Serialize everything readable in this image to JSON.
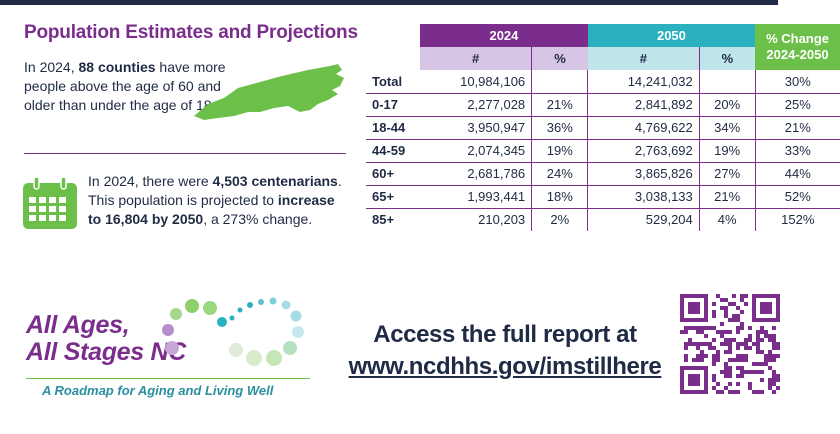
{
  "left": {
    "title": "Population Estimates and Projections",
    "intro_pre": "In 2024, ",
    "intro_bold": "88 counties",
    "intro_post": " have more people above the age of 60 and older than under the age of 18.",
    "centenarian_pre": "In 2024, there were ",
    "centenarian_bold1": "4,503 centenarians",
    "centenarian_mid": ". This population is projected to ",
    "centenarian_bold2": "increase to 16,804 by 2050",
    "centenarian_post": ", a 273% change."
  },
  "table": {
    "year1": "2024",
    "year2": "2050",
    "change_line1": "% Change",
    "change_line2": "2024-2050",
    "num_label": "#",
    "pct_label": "%",
    "rows": [
      {
        "label": "Total",
        "n2024": "10,984,106",
        "p2024": "",
        "n2050": "14,241,032",
        "p2050": "",
        "change": "30%"
      },
      {
        "label": "0-17",
        "n2024": "2,277,028",
        "p2024": "21%",
        "n2050": "2,841,892",
        "p2050": "20%",
        "change": "25%"
      },
      {
        "label": "18-44",
        "n2024": "3,950,947",
        "p2024": "36%",
        "n2050": "4,769,622",
        "p2050": "34%",
        "change": "21%"
      },
      {
        "label": "44-59",
        "n2024": "2,074,345",
        "p2024": "19%",
        "n2050": "2,763,692",
        "p2050": "19%",
        "change": "33%"
      },
      {
        "label": "60+",
        "n2024": "2,681,786",
        "p2024": "24%",
        "n2050": "3,865,826",
        "p2050": "27%",
        "change": "44%"
      },
      {
        "label": "65+",
        "n2024": "1,993,441",
        "p2024": "18%",
        "n2050": "3,038,133",
        "p2050": "21%",
        "change": "52%"
      },
      {
        "label": "85+",
        "n2024": "210,203",
        "p2024": "2%",
        "n2050": "529,204",
        "p2050": "4%",
        "change": "152%"
      }
    ]
  },
  "logo": {
    "line1": "All Ages,",
    "line2": "All Stages NC",
    "tagline": "A Roadmap for Aging and Living Well"
  },
  "access": {
    "line1": "Access the full report at",
    "url": "www.ncdhhs.gov/imstillhere"
  },
  "colors": {
    "purple": "#7b2d8b",
    "teal": "#2bb0c0",
    "green": "#6cc04a",
    "navy": "#1f2a44"
  }
}
